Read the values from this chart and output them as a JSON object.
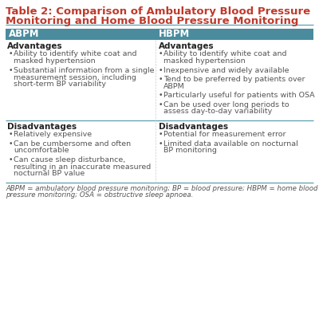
{
  "title_line1": "Table 2: Comparison of Ambulatory Blood Pressure",
  "title_line2": "Monitoring and Home Blood Pressure Monitoring",
  "title_color": "#c0392b",
  "header_bg": "#4a8c9e",
  "header_text_color": "#ffffff",
  "col1_header": "ABPM",
  "col2_header": "HBPM",
  "divider_color": "#5aa0b0",
  "background_color": "#ffffff",
  "text_color": "#555555",
  "bold_color": "#222222",
  "footer_text": "ABPM = ambulatory blood pressure monitoring; BP = blood pressure; HBPM = home blood\npressure monitoring; OSA = obstructive sleep apnoea.",
  "col1_advantages": [
    "Ability to identify white coat and\nmasked hypertension",
    "Substantial information from a single\nmeasurement session, including\nshort-term BP variability"
  ],
  "col2_advantages": [
    "Ability to identify white coat and\nmasked hypertension",
    "Inexpensive and widely available",
    "Tend to be preferred by patients over\nABPM",
    "Particularly useful for patients with OSA",
    "Can be used over long periods to\nassess day-to-day variability"
  ],
  "col1_disadvantages": [
    "Relatively expensive",
    "Can be cumbersome and often\nuncomfortable",
    "Can cause sleep disturbance,\nresulting in an inaccurate measured\nnocturnal BP value"
  ],
  "col2_disadvantages": [
    "Potential for measurement error",
    "Limited data available on nocturnal\nBP monitoring"
  ],
  "title_fs": 9.5,
  "header_fs": 8.5,
  "subheader_fs": 7.5,
  "bullet_fs": 6.8,
  "footer_fs": 6.2
}
